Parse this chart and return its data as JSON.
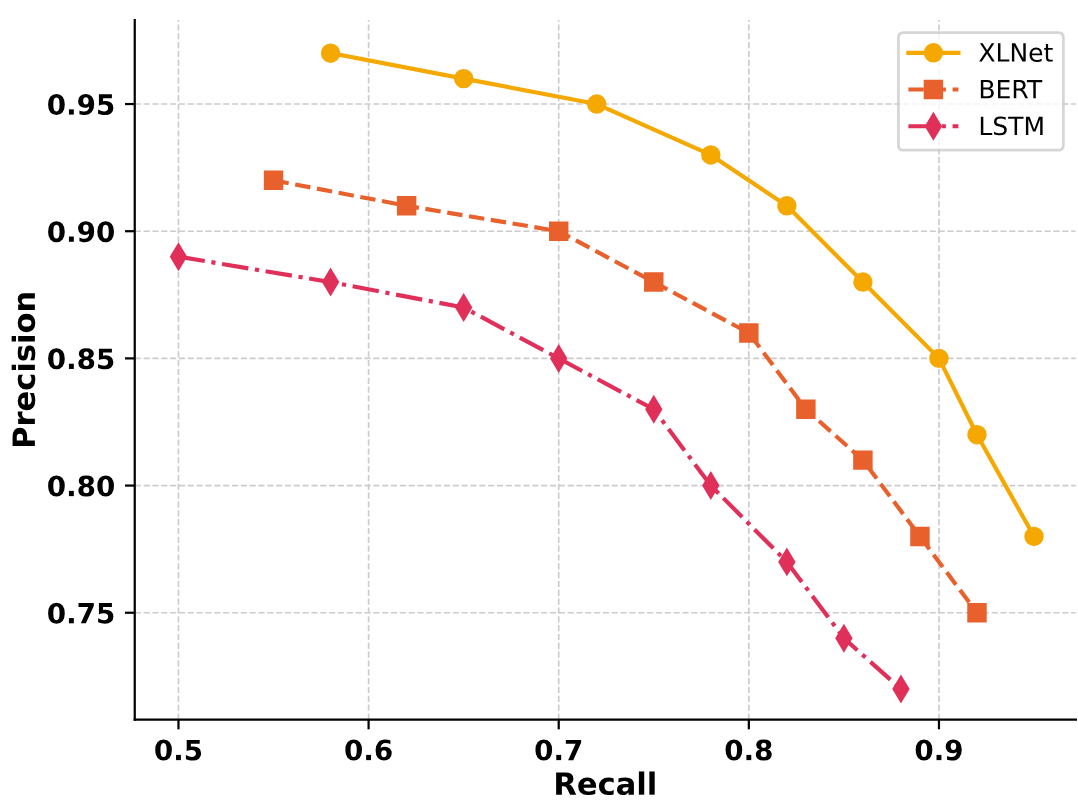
{
  "chart_data": {
    "type": "line",
    "xlabel": "Recall",
    "ylabel": "Precision",
    "xlim": [
      0.477,
      0.972
    ],
    "ylim": [
      0.708,
      0.983
    ],
    "xticks": [
      0.5,
      0.6,
      0.7,
      0.8,
      0.9
    ],
    "yticks": [
      0.75,
      {
        "value": 0.8,
        "label": "0.80"
      },
      0.85,
      {
        "value": 0.9,
        "label": "0.90"
      },
      0.95
    ],
    "grid": true,
    "legend": "top right",
    "series": [
      {
        "name": "XLNet",
        "color": "#f5a800",
        "marker": "circle",
        "line_style": "solid",
        "x": [
          0.58,
          0.65,
          0.72,
          0.78,
          0.82,
          0.86,
          0.9,
          0.92,
          0.95
        ],
        "values": [
          0.97,
          0.96,
          0.95,
          0.93,
          0.91,
          0.88,
          0.85,
          0.82,
          0.78
        ]
      },
      {
        "name": "BERT",
        "color": "#e8602c",
        "marker": "square",
        "line_style": "dashed",
        "x": [
          0.55,
          0.62,
          0.7,
          0.75,
          0.8,
          0.83,
          0.86,
          0.89,
          0.92
        ],
        "values": [
          0.92,
          0.91,
          0.9,
          0.88,
          0.86,
          0.83,
          0.81,
          0.78,
          0.75
        ]
      },
      {
        "name": "LSTM",
        "color": "#e0305a",
        "marker": "diamond",
        "line_style": "dashdot",
        "x": [
          0.5,
          0.58,
          0.65,
          0.7,
          0.75,
          0.78,
          0.82,
          0.85,
          0.88
        ],
        "values": [
          0.89,
          0.88,
          0.87,
          0.85,
          0.83,
          0.8,
          0.77,
          0.74,
          0.72
        ]
      }
    ]
  }
}
